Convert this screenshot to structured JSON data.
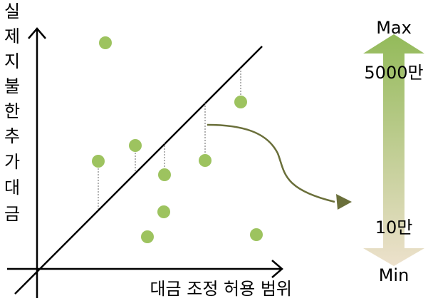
{
  "axes": {
    "y_label_chars": [
      "실",
      "제",
      "지",
      "불",
      "한",
      "추",
      "가",
      "대",
      "금"
    ],
    "x_label": "대금 조정 허용 범위"
  },
  "colors": {
    "point": "#9dc35f",
    "axis": "#000000",
    "diagonal": "#000000",
    "residual": "#666666",
    "curve": "#6a6f3a",
    "scale_top": "#93ba5a",
    "scale_bottom": "#ede1cc"
  },
  "scale": {
    "top_label": "Max",
    "max_value_label": "5000만",
    "min_value_label": "10만",
    "bottom_label": "Min"
  },
  "icons": {
    "arrow_icon": "curved-arrow-icon",
    "scale_icon": "double-headed-gradient-arrow-icon"
  }
}
